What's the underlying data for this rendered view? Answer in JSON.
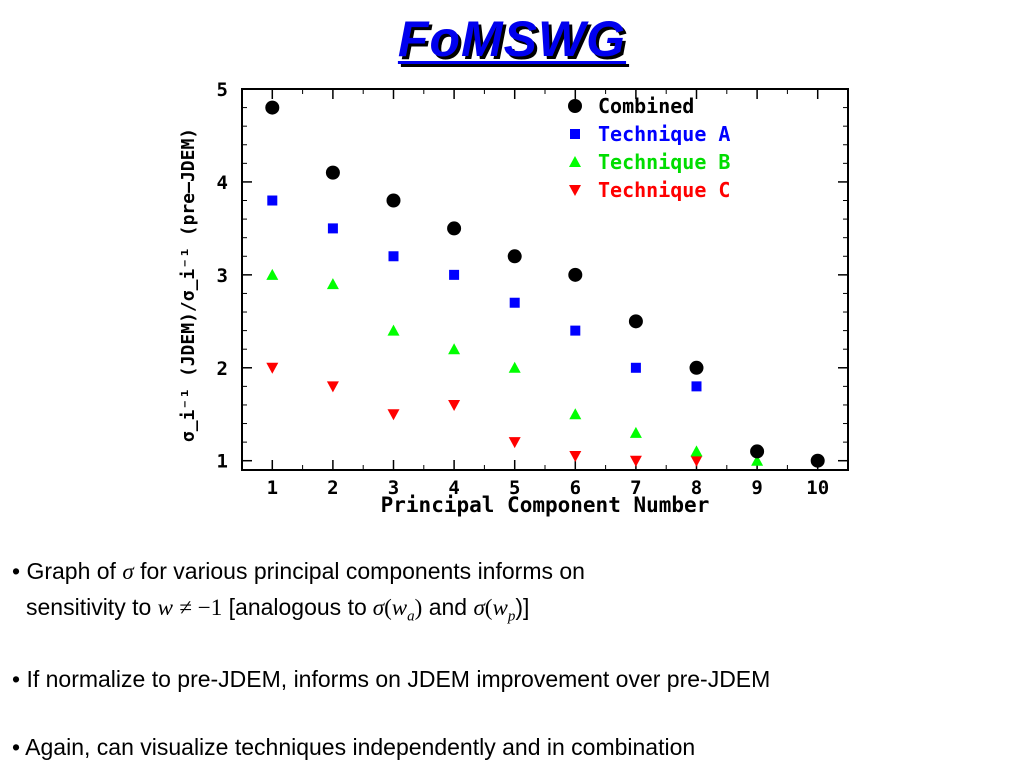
{
  "slide": {
    "title": "FoMSWG"
  },
  "chart_data": {
    "type": "scatter",
    "xlabel": "Principal Component Number",
    "ylabel": "σ_i⁻¹ (JDEM)/σ_i⁻¹ (pre–JDEM)",
    "xlim": [
      0.5,
      10.5
    ],
    "ylim": [
      0.9,
      5.0
    ],
    "x_ticks": [
      1,
      2,
      3,
      4,
      5,
      6,
      7,
      8,
      9,
      10
    ],
    "y_ticks": [
      1,
      2,
      3,
      4,
      5
    ],
    "grid": false,
    "legend_position": "top-right",
    "series": [
      {
        "name": "Combined",
        "marker": "circle",
        "color": "#000000",
        "x": [
          1,
          2,
          3,
          4,
          5,
          6,
          7,
          8,
          9,
          10
        ],
        "y": [
          4.8,
          4.1,
          3.8,
          3.5,
          3.2,
          3.0,
          2.5,
          2.0,
          1.1,
          1.0
        ]
      },
      {
        "name": "Technique A",
        "marker": "square",
        "color": "#0000ff",
        "x": [
          1,
          2,
          3,
          4,
          5,
          6,
          7,
          8
        ],
        "y": [
          3.8,
          3.5,
          3.2,
          3.0,
          2.7,
          2.4,
          2.0,
          1.8
        ]
      },
      {
        "name": "Technique B",
        "marker": "triangle-up",
        "color": "#00ff00",
        "x": [
          1,
          2,
          3,
          4,
          5,
          6,
          7,
          8,
          9
        ],
        "y": [
          3.0,
          2.9,
          2.4,
          2.2,
          2.0,
          1.5,
          1.3,
          1.1,
          1.0
        ]
      },
      {
        "name": "Technique C",
        "marker": "triangle-down",
        "color": "#ff0000",
        "x": [
          1,
          2,
          3,
          4,
          5,
          6,
          7,
          8
        ],
        "y": [
          2.0,
          1.8,
          1.5,
          1.6,
          1.2,
          1.05,
          1.0,
          1.0
        ]
      }
    ]
  },
  "bullets": {
    "b1": {
      "prefix": "• Graph of",
      "sigma": "σ",
      "mid": "for various principal components informs on",
      "line2_start": "sensitivity to",
      "w": "w",
      "neq_expr": "≠ −1",
      "analogous": "[analogous to",
      "sig_a": "σ",
      "open_paren_a": "(",
      "wa": "w",
      "a_sub": "a",
      "close_paren_a": ")",
      "and": "and",
      "sig_p": "σ",
      "open_paren_p": "(",
      "wp": "w",
      "p_sub": "p",
      "close_paren_p": ")]"
    },
    "b2": "• If normalize to pre-JDEM, informs on JDEM improvement over pre-JDEM",
    "b3": "• Again, can visualize techniques independently and in combination"
  }
}
